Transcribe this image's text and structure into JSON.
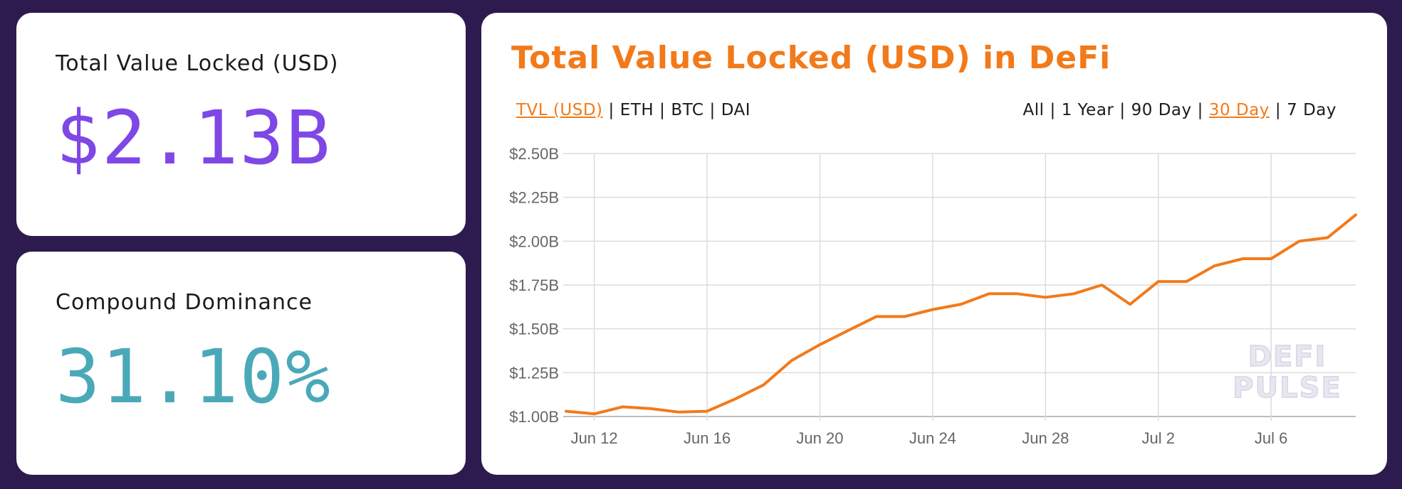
{
  "tvl_card": {
    "label": "Total Value Locked (USD)",
    "value": "$2.13B"
  },
  "dominance_card": {
    "label": "Compound Dominance",
    "value": "31.10%"
  },
  "chart_card": {
    "title": "Total Value Locked (USD) in DeFi",
    "metric_tabs": [
      {
        "label": "TVL (USD)",
        "active": true
      },
      {
        "label": "ETH",
        "active": false
      },
      {
        "label": "BTC",
        "active": false
      },
      {
        "label": "DAI",
        "active": false
      }
    ],
    "range_tabs": [
      {
        "label": "All",
        "active": false
      },
      {
        "label": "1 Year",
        "active": false
      },
      {
        "label": "90 Day",
        "active": false
      },
      {
        "label": "30 Day",
        "active": true
      },
      {
        "label": "7 Day",
        "active": false
      }
    ],
    "watermark": [
      "DEFI",
      "PULSE"
    ]
  },
  "colors": {
    "background": "#2d1a4f",
    "tvl_value": "#7f47e6",
    "dominance_value": "#4aa9b8",
    "accent": "#f27a1a",
    "grid": "#dcdcdc",
    "axis_text": "#666666"
  },
  "chart_data": {
    "type": "line",
    "title": "Total Value Locked (USD) in DeFi",
    "xlabel": "",
    "ylabel": "",
    "ylim": [
      1.0,
      2.5
    ],
    "grid": true,
    "y_ticks": [
      {
        "value": 1.0,
        "label": "$1.00B"
      },
      {
        "value": 1.25,
        "label": "$1.25B"
      },
      {
        "value": 1.5,
        "label": "$1.50B"
      },
      {
        "value": 1.75,
        "label": "$1.75B"
      },
      {
        "value": 2.0,
        "label": "$2.00B"
      },
      {
        "value": 2.25,
        "label": "$2.25B"
      },
      {
        "value": 2.5,
        "label": "$2.50B"
      }
    ],
    "x_ticks": [
      "Jun 12",
      "Jun 16",
      "Jun 20",
      "Jun 24",
      "Jun 28",
      "Jul 2",
      "Jul 6"
    ],
    "series": [
      {
        "color": "#f27a1a",
        "x": [
          "Jun 11",
          "Jun 12",
          "Jun 13",
          "Jun 14",
          "Jun 15",
          "Jun 16",
          "Jun 17",
          "Jun 18",
          "Jun 19",
          "Jun 20",
          "Jun 21",
          "Jun 22",
          "Jun 23",
          "Jun 24",
          "Jun 25",
          "Jun 26",
          "Jun 27",
          "Jun 28",
          "Jun 29",
          "Jun 30",
          "Jul 1",
          "Jul 2",
          "Jul 3",
          "Jul 4",
          "Jul 5",
          "Jul 6",
          "Jul 7",
          "Jul 8",
          "Jul 9"
        ],
        "values": [
          1.03,
          1.015,
          1.055,
          1.045,
          1.025,
          1.03,
          1.1,
          1.18,
          1.32,
          1.41,
          1.49,
          1.57,
          1.57,
          1.61,
          1.64,
          1.7,
          1.7,
          1.68,
          1.7,
          1.75,
          1.64,
          1.77,
          1.77,
          1.86,
          1.9,
          1.9,
          2.0,
          2.02,
          2.15
        ]
      }
    ]
  }
}
